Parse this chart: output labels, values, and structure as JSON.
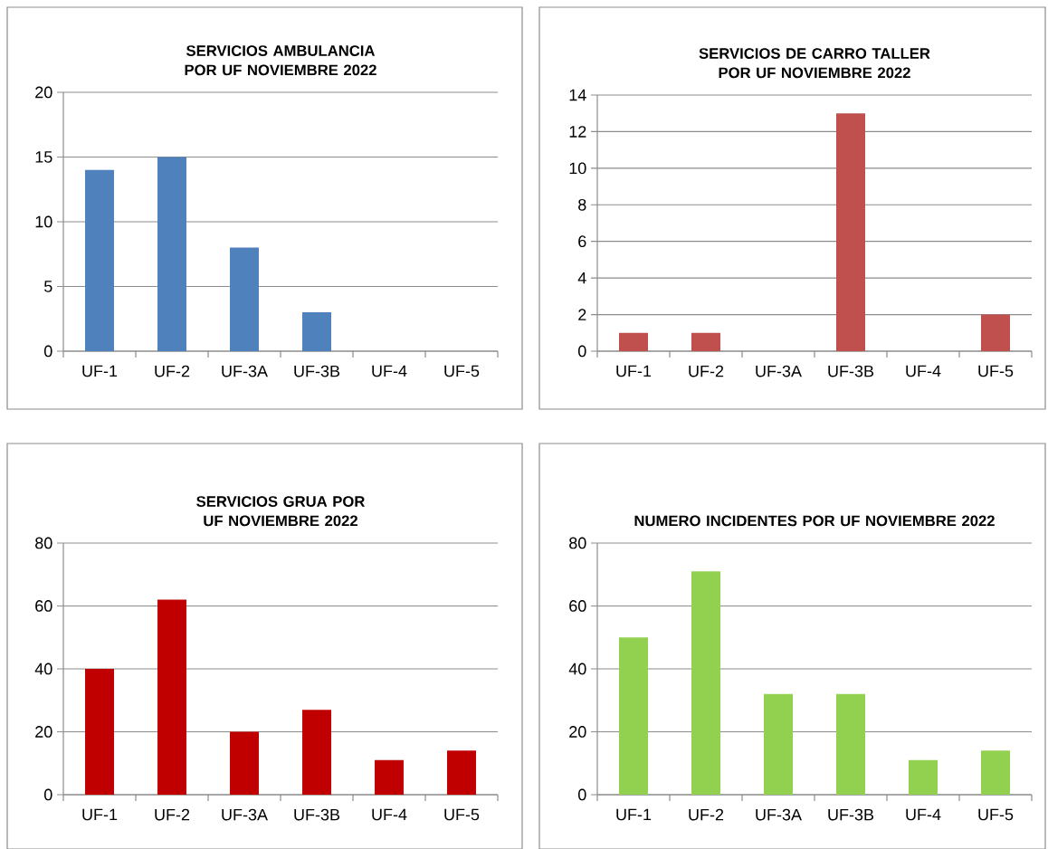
{
  "chart_data": [
    {
      "type": "bar",
      "title": "SERVICIOS AMBULANCIA POR UF NOVIEMBRE 2022",
      "categories": [
        "UF-1",
        "UF-2",
        "UF-3A",
        "UF-3B",
        "UF-4",
        "UF-5"
      ],
      "values": [
        14,
        15,
        8,
        3,
        0,
        0
      ],
      "color": "#4f81bd",
      "ylim": [
        0,
        20
      ],
      "yticks": [
        0,
        5,
        10,
        15,
        20
      ],
      "grid": "y"
    },
    {
      "type": "bar",
      "title": "SERVICIOS DE CARRO TALLER POR UF NOVIEMBRE 2022",
      "categories": [
        "UF-1",
        "UF-2",
        "UF-3A",
        "UF-3B",
        "UF-4",
        "UF-5"
      ],
      "values": [
        1,
        1,
        0,
        13,
        0,
        2
      ],
      "color": "#c0504d",
      "ylim": [
        0,
        14
      ],
      "yticks": [
        0,
        2,
        4,
        6,
        8,
        10,
        12,
        14
      ],
      "grid": "y"
    },
    {
      "type": "bar",
      "title": "SERVICIOS GRUA POR UF NOVIEMBRE 2022",
      "categories": [
        "UF-1",
        "UF-2",
        "UF-3A",
        "UF-3B",
        "UF-4",
        "UF-5"
      ],
      "values": [
        40,
        62,
        20,
        27,
        11,
        14
      ],
      "color": "#c00000",
      "ylim": [
        0,
        80
      ],
      "yticks": [
        0,
        20,
        40,
        60,
        80
      ],
      "grid": "y"
    },
    {
      "type": "bar",
      "title": "NUMERO INCIDENTES POR UF NOVIEMBRE 2022",
      "categories": [
        "UF-1",
        "UF-2",
        "UF-3A",
        "UF-3B",
        "UF-4",
        "UF-5"
      ],
      "values": [
        50,
        71,
        32,
        32,
        11,
        14
      ],
      "color": "#92d050",
      "ylim": [
        0,
        80
      ],
      "yticks": [
        0,
        20,
        40,
        60,
        80
      ],
      "grid": "y"
    }
  ]
}
